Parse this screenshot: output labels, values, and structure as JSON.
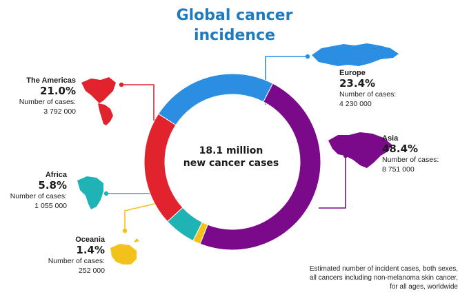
{
  "title_lines": [
    "Global cancer",
    "incidence"
  ],
  "center_lines": [
    "18.1 million",
    "new cancer cases"
  ],
  "footnote_lines": [
    "Estimated number of incident cases, both sexes,",
    "all cancers including non-melanoma skin cancer,",
    "for all ages, worldwide"
  ],
  "cases_label": "Number of cases:",
  "colors": {
    "title": "#1f7bbf",
    "europe": "#2b8ee0",
    "asia": "#7a0a8a",
    "americas": "#e0232d",
    "africa": "#1fb3b6",
    "oceania": "#f2c21b"
  },
  "chart_data": {
    "type": "pie",
    "donut": true,
    "total_label": "18.1 million",
    "slices": [
      {
        "name": "Europe",
        "percent": 23.4,
        "percent_label": "23.4%",
        "cases": "4 230 000",
        "color": "#2b8ee0"
      },
      {
        "name": "Asia",
        "percent": 48.4,
        "percent_label": "48.4%",
        "cases": "8 751 000",
        "color": "#7a0a8a"
      },
      {
        "name": "Oceania",
        "percent": 1.4,
        "percent_label": "1.4%",
        "cases": "252 000",
        "color": "#f2c21b"
      },
      {
        "name": "Africa",
        "percent": 5.8,
        "percent_label": "5.8%",
        "cases": "1 055 000",
        "color": "#1fb3b6"
      },
      {
        "name": "The Americas",
        "percent": 21.0,
        "percent_label": "21.0%",
        "cases": "3 792 000",
        "color": "#e0232d"
      }
    ]
  }
}
